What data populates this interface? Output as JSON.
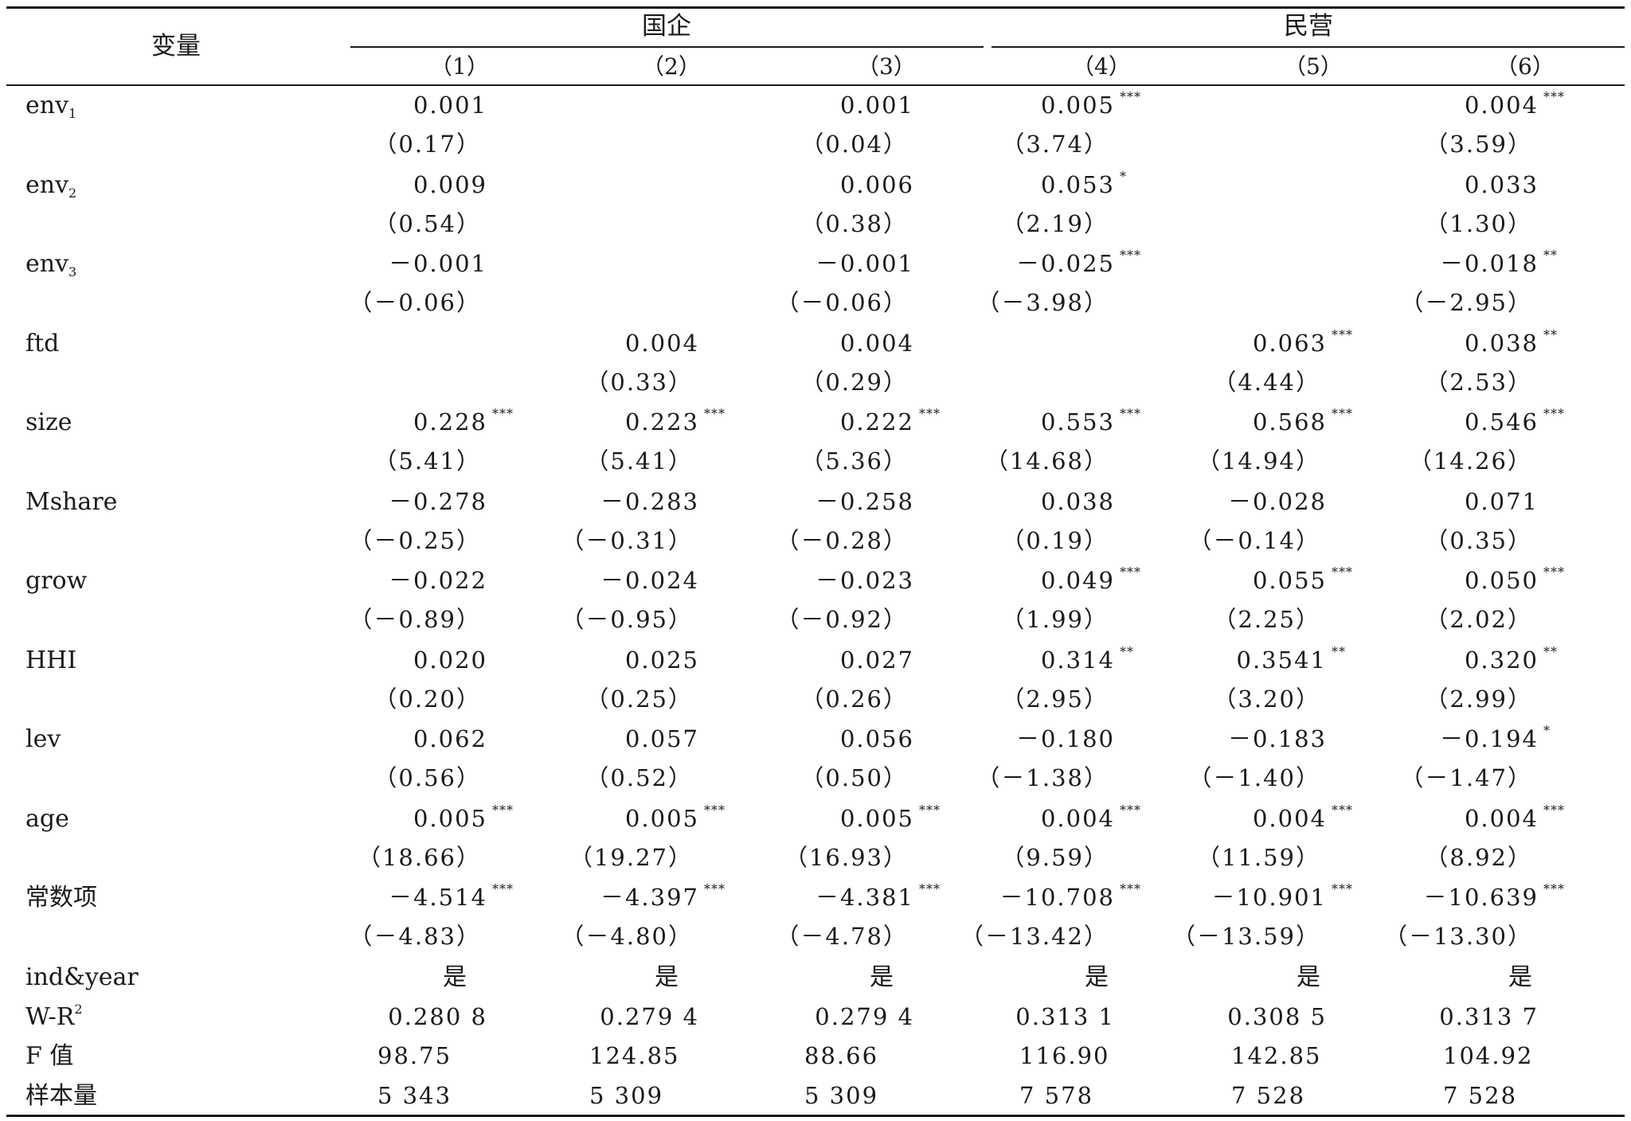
{
  "header": {
    "variable": "变量",
    "group_soe": "国企",
    "group_private": "民营",
    "columns": [
      "（1）",
      "（2）",
      "（3）",
      "（4）",
      "（5）",
      "（6）"
    ]
  },
  "rows": [
    {
      "label": "env",
      "sub": "1",
      "sup": "",
      "coef": [
        "0.001",
        "",
        "0.001",
        "0.005",
        "",
        "0.004"
      ],
      "stars": [
        "",
        "",
        "",
        "***",
        "",
        "***"
      ],
      "t": [
        "(0.17)",
        "",
        "(0.04)",
        "(3.74)",
        "",
        "(3.59)"
      ]
    },
    {
      "label": "env",
      "sub": "2",
      "sup": "",
      "coef": [
        "0.009",
        "",
        "0.006",
        "0.053",
        "",
        "0.033"
      ],
      "stars": [
        "",
        "",
        "",
        "*",
        "",
        ""
      ],
      "t": [
        "(0.54)",
        "",
        "(0.38)",
        "(2.19)",
        "",
        "(1.30)"
      ]
    },
    {
      "label": "env",
      "sub": "3",
      "sup": "",
      "coef": [
        "−0.001",
        "",
        "−0.001",
        "−0.025",
        "",
        "−0.018"
      ],
      "stars": [
        "",
        "",
        "",
        "***",
        "",
        "**"
      ],
      "t": [
        "(−0.06)",
        "",
        "(−0.06)",
        "(−3.98)",
        "",
        "(−2.95)"
      ]
    },
    {
      "label": "ftd",
      "sub": "",
      "sup": "",
      "coef": [
        "",
        "0.004",
        "0.004",
        "",
        "0.063",
        "0.038"
      ],
      "stars": [
        "",
        "",
        "",
        "",
        "***",
        "**"
      ],
      "t": [
        "",
        "(0.33)",
        "(0.29)",
        "",
        "(4.44)",
        "(2.53)"
      ]
    },
    {
      "label": "size",
      "sub": "",
      "sup": "",
      "coef": [
        "0.228",
        "0.223",
        "0.222",
        "0.553",
        "0.568",
        "0.546"
      ],
      "stars": [
        "***",
        "***",
        "***",
        "***",
        "***",
        "***"
      ],
      "t": [
        "(5.41)",
        "(5.41)",
        "(5.36)",
        "(14.68)",
        "(14.94)",
        "(14.26)"
      ]
    },
    {
      "label": "Mshare",
      "sub": "",
      "sup": "",
      "coef": [
        "−0.278",
        "−0.283",
        "−0.258",
        "0.038",
        "−0.028",
        "0.071"
      ],
      "stars": [
        "",
        "",
        "",
        "",
        "",
        ""
      ],
      "t": [
        "(−0.25)",
        "(−0.31)",
        "(−0.28)",
        "(0.19)",
        "(−0.14)",
        "(0.35)"
      ]
    },
    {
      "label": "grow",
      "sub": "",
      "sup": "",
      "coef": [
        "−0.022",
        "−0.024",
        "−0.023",
        "0.049",
        "0.055",
        "0.050"
      ],
      "stars": [
        "",
        "",
        "",
        "***",
        "***",
        "***"
      ],
      "t": [
        "(−0.89)",
        "(−0.95)",
        "(−0.92)",
        "(1.99)",
        "(2.25)",
        "(2.02)"
      ]
    },
    {
      "label": "HHI",
      "sub": "",
      "sup": "",
      "coef": [
        "0.020",
        "0.025",
        "0.027",
        "0.314",
        "0.3541",
        "0.320"
      ],
      "stars": [
        "",
        "",
        "",
        "**",
        "**",
        "**"
      ],
      "t": [
        "(0.20)",
        "(0.25)",
        "(0.26)",
        "(2.95)",
        "(3.20)",
        "(2.99)"
      ]
    },
    {
      "label": "lev",
      "sub": "",
      "sup": "",
      "coef": [
        "0.062",
        "0.057",
        "0.056",
        "−0.180",
        "−0.183",
        "−0.194"
      ],
      "stars": [
        "",
        "",
        "",
        "",
        "",
        "*"
      ],
      "t": [
        "(0.56)",
        "(0.52)",
        "(0.50)",
        "(−1.38)",
        "(−1.40)",
        "(−1.47)"
      ]
    },
    {
      "label": "age",
      "sub": "",
      "sup": "",
      "coef": [
        "0.005",
        "0.005",
        "0.005",
        "0.004",
        "0.004",
        "0.004"
      ],
      "stars": [
        "***",
        "***",
        "***",
        "***",
        "***",
        "***"
      ],
      "t": [
        "(18.66)",
        "(19.27)",
        "(16.93)",
        "(9.59)",
        "(11.59)",
        "(8.92)"
      ]
    },
    {
      "label": "常数项",
      "sub": "",
      "sup": "",
      "coef": [
        "−4.514",
        "−4.397",
        "−4.381",
        "−10.708",
        "−10.901",
        "−10.639"
      ],
      "stars": [
        "***",
        "***",
        "***",
        "***",
        "***",
        "***"
      ],
      "t": [
        "(−4.83)",
        "(−4.80)",
        "(−4.78)",
        "(−13.42)",
        "(−13.59)",
        "(−13.30)"
      ]
    }
  ],
  "footer": [
    {
      "label": "ind&year",
      "sub": "",
      "sup": "",
      "values": [
        "是",
        "是",
        "是",
        "是",
        "是",
        "是"
      ]
    },
    {
      "label": "W-R",
      "sub": "",
      "sup": "2",
      "values": [
        "0.280 8",
        "0.279 4",
        "0.279 4",
        "0.313 1",
        "0.308 5",
        "0.313 7"
      ]
    },
    {
      "label": "F 值",
      "sub": "",
      "sup": "",
      "values": [
        "98.75",
        "124.85",
        "88.66",
        "116.90",
        "142.85",
        "104.92"
      ]
    },
    {
      "label": "样本量",
      "sub": "",
      "sup": "",
      "values": [
        "5 343",
        "5 309",
        "5 309",
        "7 578",
        "7 528",
        "7 528"
      ]
    }
  ]
}
